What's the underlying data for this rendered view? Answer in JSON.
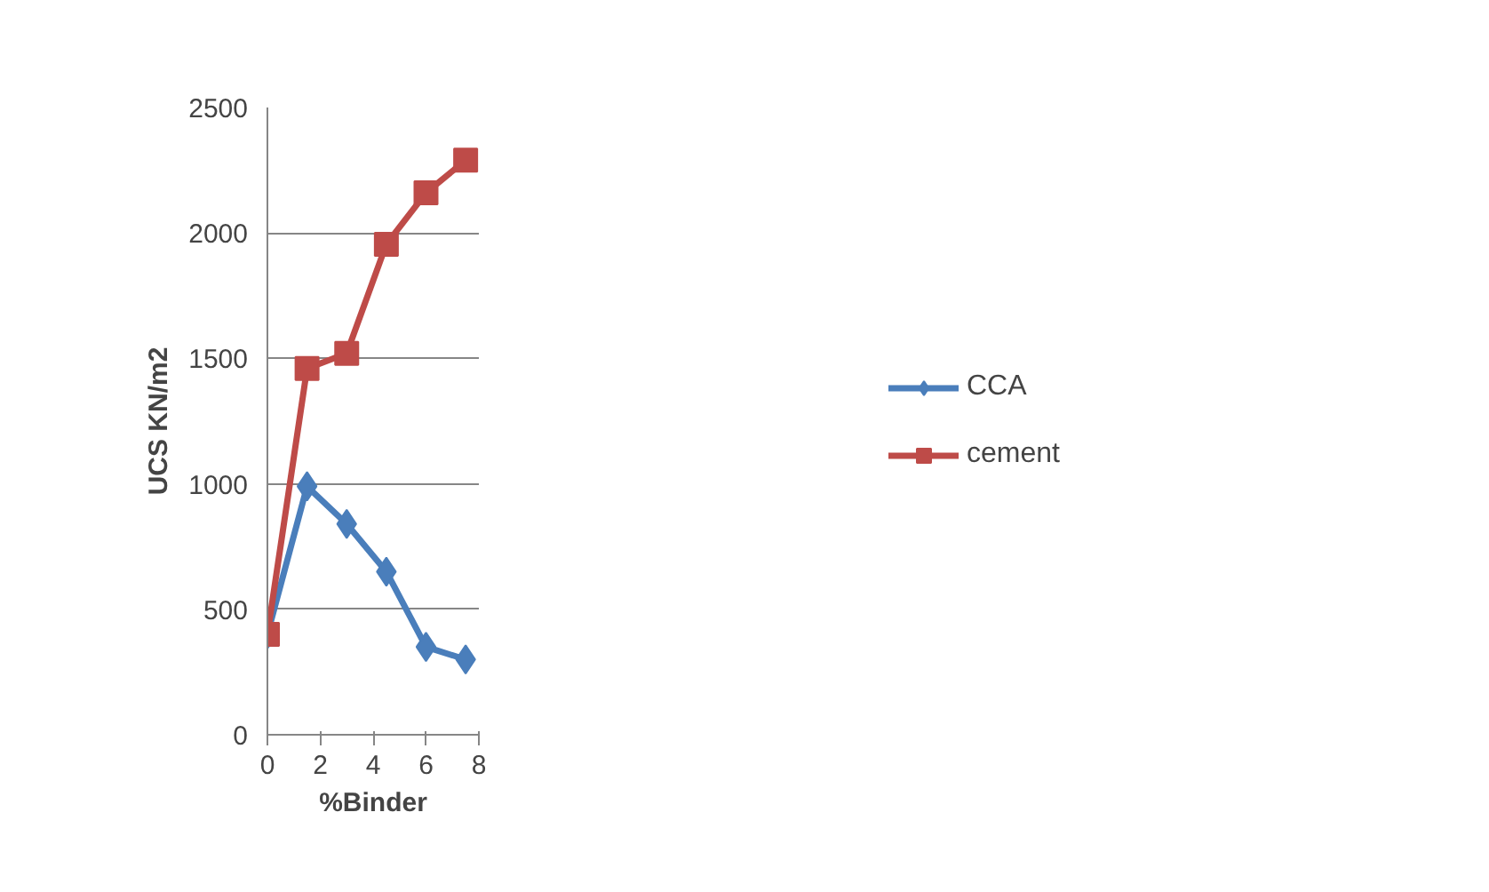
{
  "chart_data": {
    "type": "line",
    "xlabel": "%Binder",
    "ylabel": "UCS KN/m2",
    "x": [
      0,
      1.5,
      3,
      4.5,
      6,
      7.5
    ],
    "series": [
      {
        "name": "CCA",
        "color": "#4a7ebb",
        "marker": "diamond",
        "values": [
          400,
          990,
          840,
          650,
          350,
          300
        ]
      },
      {
        "name": "cement",
        "color": "#be4b48",
        "marker": "square",
        "values": [
          400,
          1460,
          1520,
          1955,
          2160,
          2290
        ]
      }
    ],
    "xlim": [
      0,
      8
    ],
    "xticks": [
      0,
      2,
      4,
      6,
      8
    ],
    "ylim": [
      0,
      2500
    ],
    "yticks": [
      0,
      500,
      1000,
      1500,
      2000,
      2500
    ],
    "grid": "y",
    "legend": "right",
    "line_style": "solid"
  }
}
